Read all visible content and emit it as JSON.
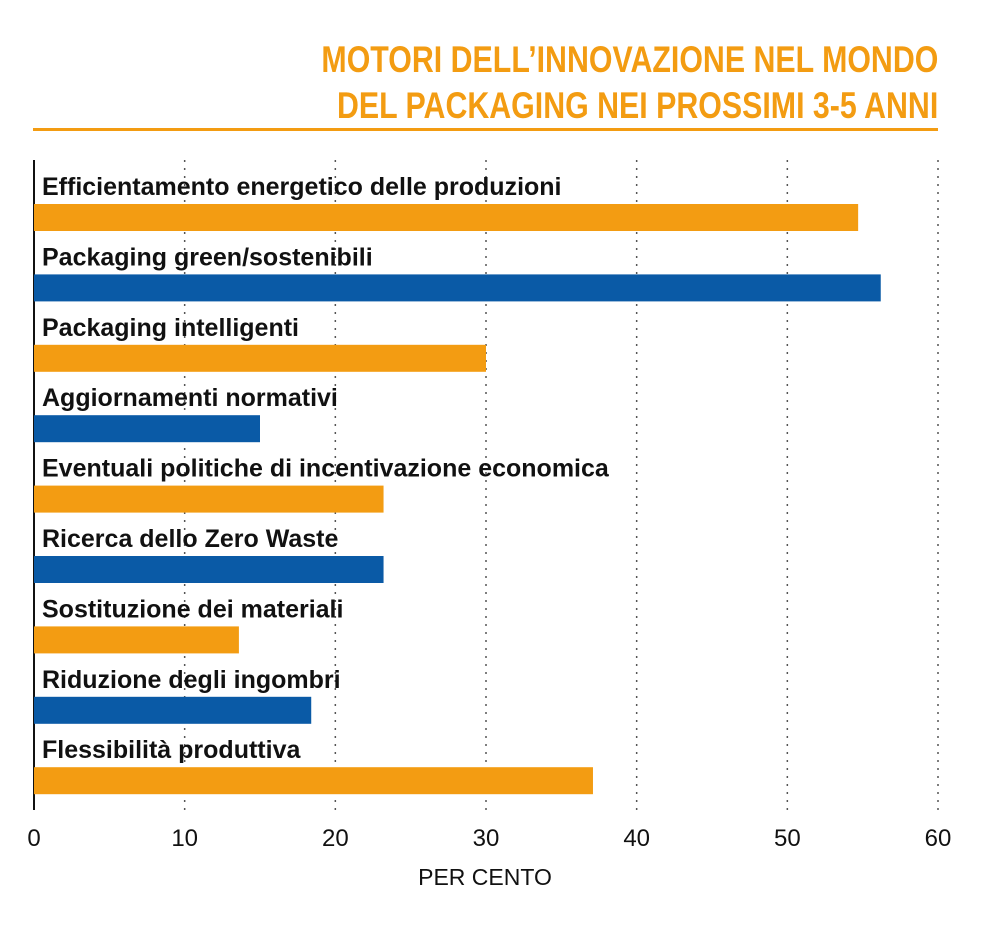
{
  "chart_data": {
    "type": "bar",
    "orientation": "horizontal",
    "title_lines": [
      "MOTORI DELL’INNOVAZIONE NEL MONDO",
      "DEL PACKAGING NEI PROSSIMI 3-5 ANNI"
    ],
    "xlabel": "PER CENTO",
    "ylabel": "",
    "xlim": [
      0,
      60
    ],
    "xticks": [
      "0",
      "10",
      "20",
      "30",
      "40",
      "50",
      "60"
    ],
    "grid": "vertical-dotted",
    "categories": [
      "Efficientamento energetico delle produzioni",
      "Packaging green/sostenibili",
      "Packaging intelligenti",
      "Aggiornamenti normativi",
      "Eventuali politiche di incentivazione economica",
      "Ricerca dello Zero Waste",
      "Sostituzione dei materiali",
      "Riduzione degli ingombri",
      "Flessibilità produttiva"
    ],
    "values": [
      54.7,
      56.2,
      30.0,
      15.0,
      23.2,
      23.2,
      13.6,
      18.4,
      37.1
    ],
    "colors": [
      "#f39c12",
      "#0a5aa6",
      "#f39c12",
      "#0a5aa6",
      "#f39c12",
      "#0a5aa6",
      "#f39c12",
      "#0a5aa6",
      "#f39c12"
    ]
  }
}
